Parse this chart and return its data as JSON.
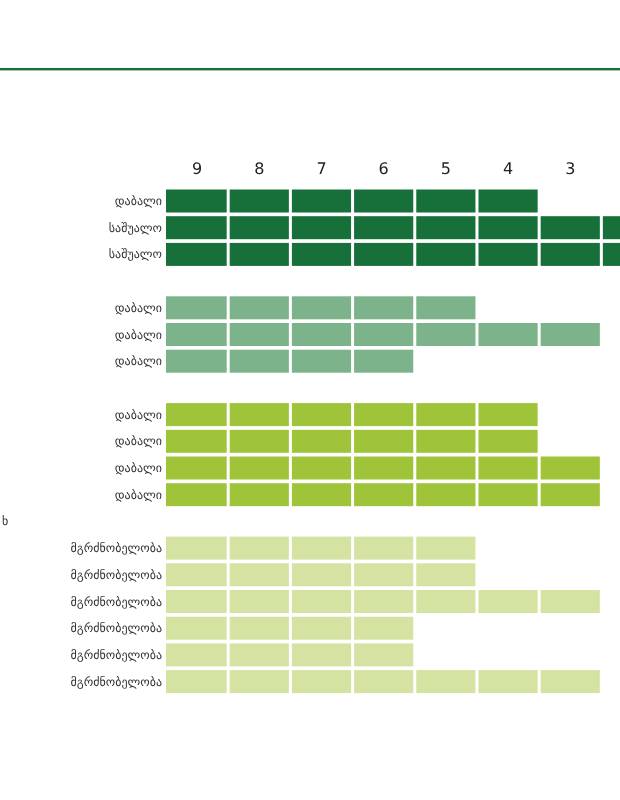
{
  "chart_data": {
    "type": "bar",
    "orientation": "horizontal",
    "categories": [
      "დაბალი",
      "საშუალო",
      "საშუალო",
      null,
      "დაბალი",
      "დაბალი",
      "დაბალი",
      null,
      "დაბალი",
      "დაბალი",
      "დაბალი",
      "დაბალი",
      null,
      "მგრძნობელობა",
      "მგრძნობელობა",
      "მგრძნობელობა",
      "მგრძნობელობა",
      "მგრძნობელობა",
      "მგრძნობელობა"
    ],
    "values": [
      -6,
      -7.3,
      -7.3,
      null,
      -5,
      -7,
      -4,
      null,
      -6,
      -6,
      -7,
      -7,
      null,
      -5,
      -5,
      -7,
      -4,
      -4,
      -7
    ],
    "base": [
      9.5,
      9.5,
      9.5,
      null,
      9.5,
      9.5,
      9.5,
      null,
      9.5,
      9.5,
      9.5,
      9.5,
      null,
      9.5,
      9.5,
      9.5,
      9.5,
      9.5,
      9.5
    ],
    "colors": [
      "#17703a",
      "#17703a",
      "#17703a",
      null,
      "#7db38a",
      "#7db38a",
      "#7db38a",
      null,
      "#9fc43a",
      "#9fc43a",
      "#9fc43a",
      "#9fc43a",
      null,
      "#d5e3a2",
      "#d5e3a2",
      "#d5e3a2",
      "#d5e3a2",
      "#d5e3a2",
      "#d5e3a2"
    ],
    "xlim": [
      9.5,
      2.2
    ],
    "xticks": [
      9,
      8,
      7,
      6,
      5,
      4,
      3
    ],
    "annotations": [
      "ხ"
    ]
  }
}
